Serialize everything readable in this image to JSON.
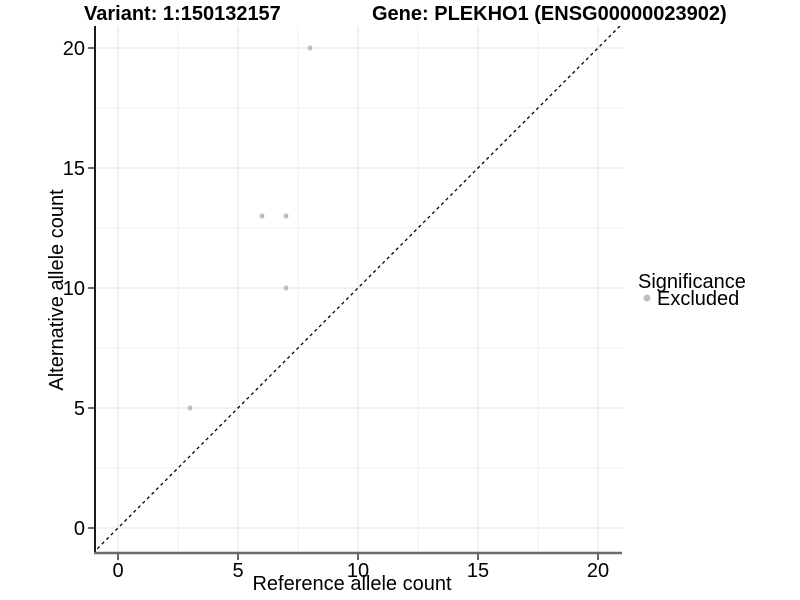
{
  "header": {
    "variant_title": "Variant: 1:150132157",
    "gene_title": "Gene: PLEKHO1 (ENSG00000023902)"
  },
  "chart_data": {
    "type": "scatter",
    "titles": {
      "left": "Variant: 1:150132157",
      "right": "Gene: PLEKHO1 (ENSG00000023902)"
    },
    "xlabel": "Reference allele count",
    "ylabel": "Alternative allele count",
    "x_ticks": [
      0,
      5,
      10,
      15,
      20
    ],
    "y_ticks": [
      0,
      5,
      10,
      15,
      20
    ],
    "xlim": [
      -1.05,
      21.05
    ],
    "ylim": [
      -1.05,
      21.05
    ],
    "grid": {
      "major": true,
      "minor": true,
      "background": "#ffffff"
    },
    "identity_line": {
      "equation": "y = x",
      "style": "dashed",
      "color": "#000000"
    },
    "series": [
      {
        "name": "Excluded",
        "color": "#bebebe",
        "points": [
          {
            "x": 3,
            "y": 5
          },
          {
            "x": 6,
            "y": 13
          },
          {
            "x": 7,
            "y": 13
          },
          {
            "x": 7,
            "y": 10
          },
          {
            "x": 8,
            "y": 20
          }
        ]
      }
    ],
    "legend": {
      "title": "Significance",
      "position": "right",
      "items": [
        {
          "label": "Excluded",
          "color": "#bebebe"
        }
      ]
    },
    "colors": {
      "grid_major": "#e3e3e3",
      "grid_minor": "#f2f2f2",
      "axis_line_x": "#6b6b6b",
      "axis_line_y": "#1a1a1a",
      "tick_mark": "#333333",
      "text": "#000000"
    }
  }
}
